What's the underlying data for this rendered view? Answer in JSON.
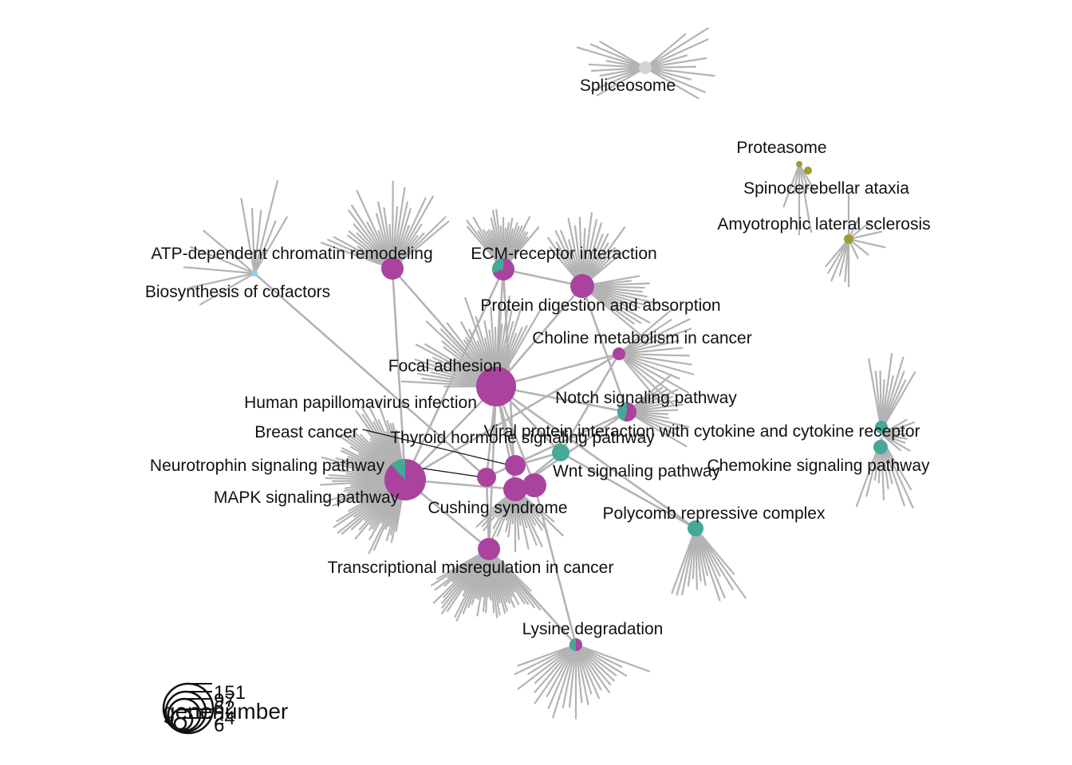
{
  "colors": {
    "edge": "#b3b3b3",
    "magenta": "#a9439e",
    "teal": "#45a898",
    "lightblue": "#8ccfee",
    "olive": "#a19b35",
    "lightgray": "#d3d3d3",
    "leader": "#111111"
  },
  "nodes": [
    {
      "id": "focal",
      "label": "Focal adhesion"
    },
    {
      "id": "atp",
      "label": "ATP-dependent chromatin remodeling"
    },
    {
      "id": "biosyn",
      "label": "Biosynthesis of cofactors"
    },
    {
      "id": "ecm",
      "label": "ECM-receptor interaction"
    },
    {
      "id": "protdig",
      "label": "Protein digestion and absorption"
    },
    {
      "id": "choline",
      "label": "Choline metabolism in cancer"
    },
    {
      "id": "hpv",
      "label": "Human papillomavirus infection"
    },
    {
      "id": "notch",
      "label": "Notch signaling pathway"
    },
    {
      "id": "viral",
      "label": "Viral protein interaction with cytokine and cytokine receptor"
    },
    {
      "id": "chemokine",
      "label": "Chemokine signaling pathway"
    },
    {
      "id": "breast",
      "label": "Breast cancer"
    },
    {
      "id": "thyroid",
      "label": "Thyroid hormone signaling pathway"
    },
    {
      "id": "neurotrophin",
      "label": "Neurotrophin signaling pathway"
    },
    {
      "id": "wnt",
      "label": "Wnt signaling pathway"
    },
    {
      "id": "mapk",
      "label": "MAPK signaling pathway"
    },
    {
      "id": "cushing",
      "label": "Cushing syndrome"
    },
    {
      "id": "polycomb",
      "label": "Polycomb repressive complex"
    },
    {
      "id": "transcr",
      "label": "Transcriptional misregulation in cancer"
    },
    {
      "id": "lysine",
      "label": "Lysine degradation"
    },
    {
      "id": "spliceosome",
      "label": "Spliceosome"
    },
    {
      "id": "proteasome",
      "label": "Proteasome"
    },
    {
      "id": "spinocerebellar",
      "label": "Spinocerebellar ataxia"
    },
    {
      "id": "als",
      "label": "Amyotrophic lateral sclerosis"
    }
  ],
  "legend": {
    "title": "genenumber",
    "sizes": [
      "151",
      "97",
      "62",
      "24",
      "6"
    ]
  }
}
